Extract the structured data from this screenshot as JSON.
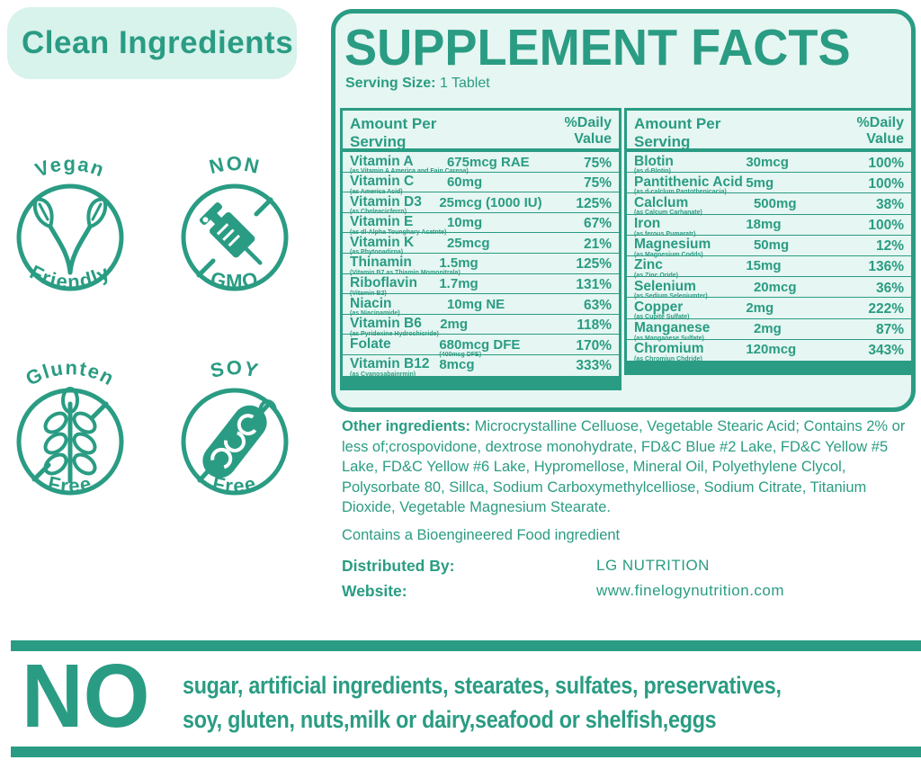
{
  "colors": {
    "teal": "#2a9c83",
    "panel_bg": "#e6f6f2",
    "pill_bg": "#d8f2ec"
  },
  "clean_ingredients": {
    "title": "Clean Ingredients"
  },
  "badges": [
    {
      "top": "Vegan",
      "bottom": "Friendly",
      "icon": "vegan-leaf-icon"
    },
    {
      "top": "NON",
      "bottom": "GMO",
      "icon": "syringe-icon"
    },
    {
      "top": "Glunten",
      "bottom": "Free",
      "icon": "wheat-icon"
    },
    {
      "top": "SOY",
      "bottom": "Free",
      "icon": "soybean-icon"
    }
  ],
  "supplement": {
    "title": "SUPPLEMENT FACTS",
    "serving_size_label": "Serving Size:",
    "serving_size_value": "1 Tablet",
    "left_table": {
      "header_amount": "Amount Per Serving",
      "header_dv": "%Daily Value",
      "rows": [
        {
          "name": "Vitamin A",
          "sub": "(as Vitamin A America and Fain Carena)",
          "amount": "675mcg RAE",
          "amount_sub": "",
          "dv": "75%"
        },
        {
          "name": "Vitamin C",
          "sub": "(as America Acid)",
          "amount": "60mg",
          "amount_sub": "",
          "dv": "75%"
        },
        {
          "name": "Vitamin D3",
          "sub": "(as Cheleacicferrn)",
          "amount": "25mcg (1000 IU)",
          "amount_sub": "",
          "dv": "125%"
        },
        {
          "name": "Vitamin E",
          "sub": "(as dl-Alpha Tounghary Acatnte)",
          "amount": "10mg",
          "amount_sub": "",
          "dv": "67%"
        },
        {
          "name": "Vitamin K",
          "sub": "(as Phytonadirna)",
          "amount": "25mcg",
          "amount_sub": "",
          "dv": "21%"
        },
        {
          "name": "Thinamin",
          "sub": "(Vitamin B7 as Thiamin Momonitrala)",
          "amount": "1.5mg",
          "amount_sub": "",
          "dv": "125%"
        },
        {
          "name": "Riboflavin",
          "sub": "(Vitamin B2)",
          "amount": "1.7mg",
          "amount_sub": "",
          "dv": "131%"
        },
        {
          "name": "Niacin",
          "sub": "(as Niacinamide)",
          "amount": "10mg NE",
          "amount_sub": "",
          "dv": "63%"
        },
        {
          "name": "Vitamin B6",
          "sub": "(as Pyridexine Hydrochicride)",
          "amount": "2mg",
          "amount_sub": "",
          "dv": "118%"
        },
        {
          "name": "Folate",
          "sub": "",
          "amount": "680mcg DFE",
          "amount_sub": "(400mcg DFE)",
          "dv": "170%"
        },
        {
          "name": "Vitamin B12",
          "sub": "(as Cyanosabainrmin)",
          "amount": "8mcg",
          "amount_sub": "",
          "dv": "333%"
        }
      ]
    },
    "right_table": {
      "header_amount": "Amount Per Serving",
      "header_dv": "%Daily Value",
      "rows": [
        {
          "name": "Blotin",
          "sub": "(as d-Blotin)",
          "amount": "30mcg",
          "amount_sub": "",
          "dv": "100%"
        },
        {
          "name": "Pantithenic Acid",
          "sub": "(as d-calclum Pantothenicacia)",
          "amount": "5mg",
          "amount_sub": "",
          "dv": "100%"
        },
        {
          "name": "Calclum",
          "sub": "(as Calcum Carhanate)",
          "amount": "500mg",
          "amount_sub": "",
          "dv": "38%"
        },
        {
          "name": "Iron",
          "sub": "(as ferous Pumaratr)",
          "amount": "18mg",
          "amount_sub": "",
          "dv": "100%"
        },
        {
          "name": "Magnesium",
          "sub": "(as Magnesium Codds)",
          "amount": "50mg",
          "amount_sub": "",
          "dv": "12%"
        },
        {
          "name": "Zinc",
          "sub": "(as Zinc Oride)",
          "amount": "15mg",
          "amount_sub": "",
          "dv": "136%"
        },
        {
          "name": "Selenium",
          "sub": "(as Sedium Seleniumter)",
          "amount": "20mcg",
          "amount_sub": "",
          "dv": "36%"
        },
        {
          "name": "Copper",
          "sub": "(as Cupite Sulfate)",
          "amount": "2mg",
          "amount_sub": "",
          "dv": "222%"
        },
        {
          "name": "Manganese",
          "sub": "(as Manganese Sulfate)",
          "amount": "2mg",
          "amount_sub": "",
          "dv": "87%"
        },
        {
          "name": "Chromium",
          "sub": "(as Chromiun Chdride)",
          "amount": "120mcg",
          "amount_sub": "",
          "dv": "343%"
        }
      ]
    }
  },
  "other_ingredients": {
    "label": "Other ingredients:",
    "text": " Microcrystalline Celluose, Vegetable Stearic Acid; Contains 2% or less of;crospovidone, dextrose monohydrate, FD&C Blue #2 Lake, FD&C Yellow #5 Lake, FD&C Yellow #6 Lake, Hypromellose, Mineral Oil, Polyethylene Clycol, Polysorbate 80, Sillca, Sodium Carboxymethylcelliose, Sodium Citrate, Titanium Dioxide, Vegetable Magnesium Stearate."
  },
  "bioengineered_note": "Contains a Bioengineered Food ingredient",
  "distribution": {
    "distributed_by_label": "Distributed By:",
    "distributed_by_value": "LG NUTRITION",
    "website_label": "Website:",
    "website_value": "www.finelogynutrition.com"
  },
  "no_banner": {
    "no": "NO",
    "line1": "sugar, artificial ingredients, stearates, sulfates, preservatives,",
    "line2": "soy, gluten, nuts,milk or dairy,seafood or shelfish,eggs"
  }
}
